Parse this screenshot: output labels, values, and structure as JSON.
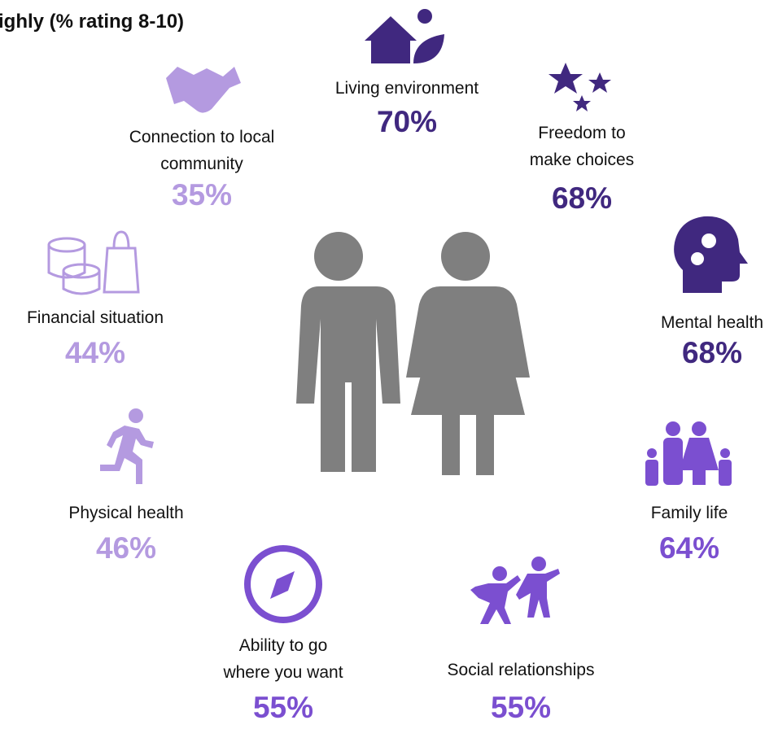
{
  "header": {
    "title": "ighly (% rating 8-10)"
  },
  "items": [
    {
      "label": [
        "Living environment"
      ],
      "value": "70%",
      "color": "#40287f"
    },
    {
      "label": [
        "Freedom to",
        "make choices"
      ],
      "value": "68%",
      "color": "#40287f"
    },
    {
      "label": [
        "Mental health"
      ],
      "value": "68%",
      "color": "#40287f"
    },
    {
      "label": [
        "Family life"
      ],
      "value": "64%",
      "color": "#7b4fd0"
    },
    {
      "label": [
        "Social relationships"
      ],
      "value": "55%",
      "color": "#7b4fd0"
    },
    {
      "label": [
        "Ability to go",
        "where you want"
      ],
      "value": "55%",
      "color": "#7b4fd0"
    },
    {
      "label": [
        "Physical health"
      ],
      "value": "46%",
      "color": "#b49ae0"
    },
    {
      "label": [
        "Financial situation"
      ],
      "value": "44%",
      "color": "#b49ae0"
    },
    {
      "label": [
        "Connection to local",
        "community"
      ],
      "value": "35%",
      "color": "#b49ae0"
    }
  ]
}
